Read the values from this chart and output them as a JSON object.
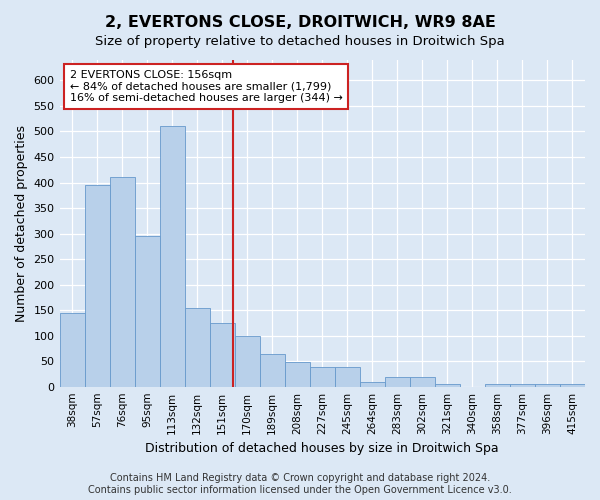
{
  "title": "2, EVERTONS CLOSE, DROITWICH, WR9 8AE",
  "subtitle": "Size of property relative to detached houses in Droitwich Spa",
  "xlabel": "Distribution of detached houses by size in Droitwich Spa",
  "ylabel": "Number of detached properties",
  "footer_line1": "Contains HM Land Registry data © Crown copyright and database right 2024.",
  "footer_line2": "Contains public sector information licensed under the Open Government Licence v3.0.",
  "bar_labels": [
    "38sqm",
    "57sqm",
    "76sqm",
    "95sqm",
    "113sqm",
    "132sqm",
    "151sqm",
    "170sqm",
    "189sqm",
    "208sqm",
    "227sqm",
    "245sqm",
    "264sqm",
    "283sqm",
    "302sqm",
    "321sqm",
    "340sqm",
    "358sqm",
    "377sqm",
    "396sqm",
    "415sqm"
  ],
  "bar_values": [
    145,
    395,
    410,
    295,
    510,
    155,
    125,
    100,
    65,
    48,
    38,
    38,
    10,
    18,
    18,
    5,
    0,
    5,
    5,
    5,
    5
  ],
  "bar_color": "#b8d0ea",
  "bar_edgecolor": "#6699cc",
  "vline_x": 6.42,
  "vline_color": "#cc2222",
  "annotation_text": "2 EVERTONS CLOSE: 156sqm\n← 84% of detached houses are smaller (1,799)\n16% of semi-detached houses are larger (344) →",
  "annotation_box_facecolor": "white",
  "annotation_box_edgecolor": "#cc2222",
  "ylim": [
    0,
    640
  ],
  "yticks": [
    0,
    50,
    100,
    150,
    200,
    250,
    300,
    350,
    400,
    450,
    500,
    550,
    600
  ],
  "bg_color": "#dce8f5",
  "plot_bg_color": "#dce8f5",
  "grid_color": "#ffffff",
  "title_fontsize": 11.5,
  "subtitle_fontsize": 9.5,
  "tick_fontsize": 8,
  "xtick_fontsize": 7.5,
  "label_fontsize": 9,
  "footer_fontsize": 7.0,
  "ann_fontsize": 8.0
}
